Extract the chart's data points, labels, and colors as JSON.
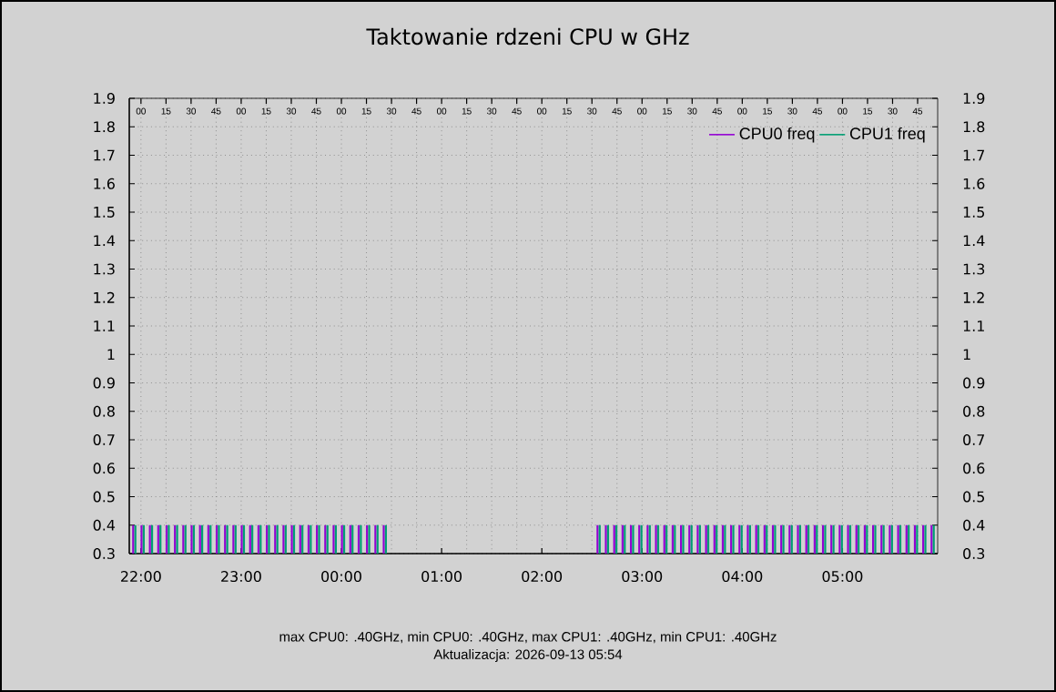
{
  "chart_data": {
    "type": "bar",
    "title": "Taktowanie rdzeni CPU w GHz",
    "annotations": [
      "max CPU0: .40GHz, min CPU0: .40GHz, max CPU1: .40GHz, min CPU1: .40GHz",
      "Aktualizacja: 2026-09-13 05:54"
    ],
    "x": [
      "2026-09-12T21:56",
      "2026-09-12T22:01",
      "2026-09-12T22:06",
      "2026-09-12T22:11",
      "2026-09-12T22:16",
      "2026-09-12T22:21",
      "2026-09-12T22:26",
      "2026-09-12T22:31",
      "2026-09-12T22:36",
      "2026-09-12T22:41",
      "2026-09-12T22:46",
      "2026-09-12T22:51",
      "2026-09-12T22:56",
      "2026-09-12T23:01",
      "2026-09-12T23:06",
      "2026-09-12T23:11",
      "2026-09-12T23:16",
      "2026-09-12T23:21",
      "2026-09-12T23:26",
      "2026-09-12T23:31",
      "2026-09-12T23:36",
      "2026-09-12T23:41",
      "2026-09-12T23:46",
      "2026-09-12T23:51",
      "2026-09-12T23:56",
      "2026-09-13T00:01",
      "2026-09-13T00:06",
      "2026-09-13T00:11",
      "2026-09-13T00:16",
      "2026-09-13T00:21",
      "2026-09-13T00:26",
      "2026-09-13T02:34",
      "2026-09-13T02:39",
      "2026-09-13T02:44",
      "2026-09-13T02:49",
      "2026-09-13T02:54",
      "2026-09-13T02:59",
      "2026-09-13T03:04",
      "2026-09-13T03:09",
      "2026-09-13T03:14",
      "2026-09-13T03:19",
      "2026-09-13T03:24",
      "2026-09-13T03:29",
      "2026-09-13T03:34",
      "2026-09-13T03:39",
      "2026-09-13T03:44",
      "2026-09-13T03:49",
      "2026-09-13T03:54",
      "2026-09-13T03:59",
      "2026-09-13T04:04",
      "2026-09-13T04:09",
      "2026-09-13T04:14",
      "2026-09-13T04:19",
      "2026-09-13T04:24",
      "2026-09-13T04:29",
      "2026-09-13T04:34",
      "2026-09-13T04:39",
      "2026-09-13T04:44",
      "2026-09-13T04:49",
      "2026-09-13T04:54",
      "2026-09-13T04:59",
      "2026-09-13T05:04",
      "2026-09-13T05:09",
      "2026-09-13T05:14",
      "2026-09-13T05:19",
      "2026-09-13T05:24",
      "2026-09-13T05:29",
      "2026-09-13T05:34",
      "2026-09-13T05:39",
      "2026-09-13T05:44",
      "2026-09-13T05:49",
      "2026-09-13T05:54"
    ],
    "series": [
      {
        "name": "CPU0 freq",
        "color": "#9400d3",
        "values": [
          0.4,
          0.4,
          0.4,
          0.4,
          0.4,
          0.4,
          0.4,
          0.4,
          0.4,
          0.4,
          0.4,
          0.4,
          0.4,
          0.4,
          0.4,
          0.4,
          0.4,
          0.4,
          0.4,
          0.4,
          0.4,
          0.4,
          0.4,
          0.4,
          0.4,
          0.4,
          0.4,
          0.4,
          0.4,
          0.4,
          0.4,
          0.4,
          0.4,
          0.4,
          0.4,
          0.4,
          0.4,
          0.4,
          0.4,
          0.4,
          0.4,
          0.4,
          0.4,
          0.4,
          0.4,
          0.4,
          0.4,
          0.4,
          0.4,
          0.4,
          0.4,
          0.4,
          0.4,
          0.4,
          0.4,
          0.4,
          0.4,
          0.4,
          0.4,
          0.4,
          0.4,
          0.4,
          0.4,
          0.4,
          0.4,
          0.4,
          0.4,
          0.4,
          0.4,
          0.4,
          0.4,
          0.4
        ]
      },
      {
        "name": "CPU1 freq",
        "color": "#009e73",
        "values": [
          0.4,
          0.4,
          0.4,
          0.4,
          0.4,
          0.4,
          0.4,
          0.4,
          0.4,
          0.4,
          0.4,
          0.4,
          0.4,
          0.4,
          0.4,
          0.4,
          0.4,
          0.4,
          0.4,
          0.4,
          0.4,
          0.4,
          0.4,
          0.4,
          0.4,
          0.4,
          0.4,
          0.4,
          0.4,
          0.4,
          0.4,
          0.4,
          0.4,
          0.4,
          0.4,
          0.4,
          0.4,
          0.4,
          0.4,
          0.4,
          0.4,
          0.4,
          0.4,
          0.4,
          0.4,
          0.4,
          0.4,
          0.4,
          0.4,
          0.4,
          0.4,
          0.4,
          0.4,
          0.4,
          0.4,
          0.4,
          0.4,
          0.4,
          0.4,
          0.4,
          0.4,
          0.4,
          0.4,
          0.4,
          0.4,
          0.4,
          0.4,
          0.4,
          0.4,
          0.4,
          0.4,
          0.4
        ]
      }
    ],
    "xlim": [
      "2026-09-12T21:53",
      "2026-09-13T05:57"
    ],
    "xticks": [
      {
        "value": "2026-09-12T22:00",
        "label": "22:00"
      },
      {
        "value": "2026-09-12T23:00",
        "label": "23:00"
      },
      {
        "value": "2026-09-13T00:00",
        "label": "00:00"
      },
      {
        "value": "2026-09-13T01:00",
        "label": "01:00"
      },
      {
        "value": "2026-09-13T02:00",
        "label": "02:00"
      },
      {
        "value": "2026-09-13T03:00",
        "label": "03:00"
      },
      {
        "value": "2026-09-13T04:00",
        "label": "04:00"
      },
      {
        "value": "2026-09-13T05:00",
        "label": "05:00"
      }
    ],
    "x2lim": [
      "2026-09-12T21:53",
      "2026-09-13T05:57"
    ],
    "x2ticks": [
      {
        "value": "2026-09-12T22:00",
        "label": "00"
      },
      {
        "value": "2026-09-12T22:15",
        "label": "15"
      },
      {
        "value": "2026-09-12T22:30",
        "label": "30"
      },
      {
        "value": "2026-09-12T22:45",
        "label": "45"
      },
      {
        "value": "2026-09-12T23:00",
        "label": "00"
      },
      {
        "value": "2026-09-12T23:15",
        "label": "15"
      },
      {
        "value": "2026-09-12T23:30",
        "label": "30"
      },
      {
        "value": "2026-09-12T23:45",
        "label": "45"
      },
      {
        "value": "2026-09-13T00:00",
        "label": "00"
      },
      {
        "value": "2026-09-13T00:15",
        "label": "15"
      },
      {
        "value": "2026-09-13T00:30",
        "label": "30"
      },
      {
        "value": "2026-09-13T00:45",
        "label": "45"
      },
      {
        "value": "2026-09-13T01:00",
        "label": "00"
      },
      {
        "value": "2026-09-13T01:15",
        "label": "15"
      },
      {
        "value": "2026-09-13T01:30",
        "label": "30"
      },
      {
        "value": "2026-09-13T01:45",
        "label": "45"
      },
      {
        "value": "2026-09-13T02:00",
        "label": "00"
      },
      {
        "value": "2026-09-13T02:15",
        "label": "15"
      },
      {
        "value": "2026-09-13T02:30",
        "label": "30"
      },
      {
        "value": "2026-09-13T02:45",
        "label": "45"
      },
      {
        "value": "2026-09-13T03:00",
        "label": "00"
      },
      {
        "value": "2026-09-13T03:15",
        "label": "15"
      },
      {
        "value": "2026-09-13T03:30",
        "label": "30"
      },
      {
        "value": "2026-09-13T03:45",
        "label": "45"
      },
      {
        "value": "2026-09-13T04:00",
        "label": "00"
      },
      {
        "value": "2026-09-13T04:15",
        "label": "15"
      },
      {
        "value": "2026-09-13T04:30",
        "label": "30"
      },
      {
        "value": "2026-09-13T04:45",
        "label": "45"
      },
      {
        "value": "2026-09-13T05:00",
        "label": "00"
      },
      {
        "value": "2026-09-13T05:15",
        "label": "15"
      },
      {
        "value": "2026-09-13T05:30",
        "label": "30"
      },
      {
        "value": "2026-09-13T05:45",
        "label": "45"
      }
    ],
    "ylim": [
      0.3,
      1.9
    ],
    "yticks": [
      0.3,
      0.4,
      0.5,
      0.6,
      0.7,
      0.8,
      0.9,
      1,
      1.1,
      1.2,
      1.3,
      1.4,
      1.5,
      1.6,
      1.7,
      1.8,
      1.9
    ],
    "y2lim": [
      0.3,
      1.9
    ],
    "y2ticks": [
      0.3,
      0.4,
      0.5,
      0.6,
      0.7,
      0.8,
      0.9,
      1,
      1.1,
      1.2,
      1.3,
      1.4,
      1.5,
      1.6,
      1.7,
      1.8,
      1.9
    ],
    "grid": true,
    "legend": "top right"
  }
}
